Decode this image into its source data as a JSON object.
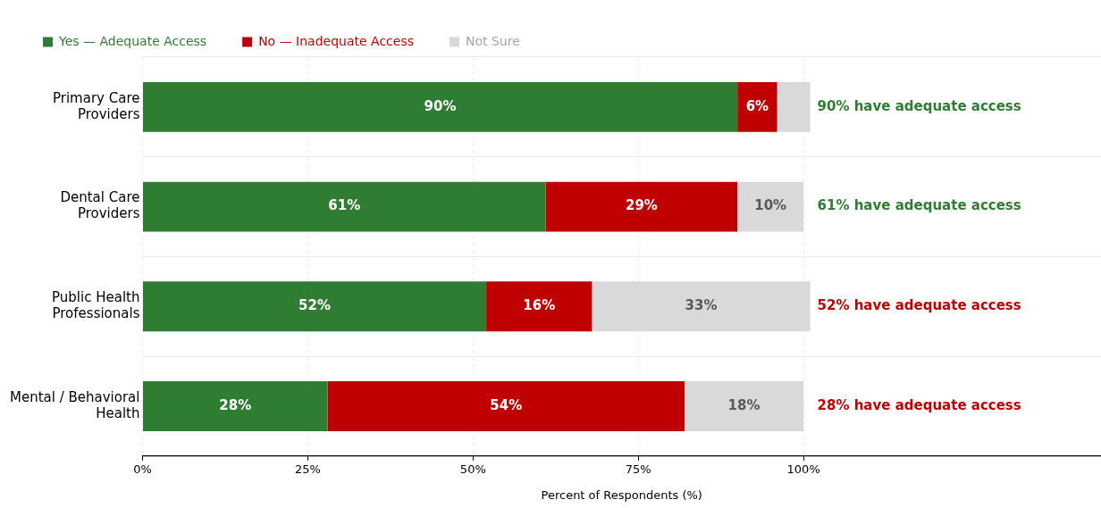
{
  "chart_data": {
    "type": "bar",
    "orientation": "horizontal",
    "stacked": true,
    "categories": [
      "Primary Care\nProviders",
      "Dental Care\nProviders",
      "Public Health\nProfessionals",
      "Mental / Behavioral\nHealth"
    ],
    "series": [
      {
        "name": "Yes — Adequate Access",
        "color": "#2e7d32",
        "values": [
          90,
          61,
          52,
          28
        ],
        "value_labels": [
          "90%",
          "61%",
          "52%",
          "28%"
        ]
      },
      {
        "name": "No — Inadequate Access",
        "color": "#c00000",
        "values": [
          6,
          29,
          16,
          54
        ],
        "value_labels": [
          "6%",
          "29%",
          "16%",
          "54%"
        ]
      },
      {
        "name": "Not Sure",
        "color": "#d9d9d9",
        "values": [
          5,
          10,
          33,
          18
        ],
        "value_labels": [
          null,
          "10%",
          "33%",
          "18%"
        ]
      }
    ],
    "xlabel": "Percent of Respondents (%)",
    "xlim": [
      0,
      145
    ],
    "xticks": [
      {
        "value": 0,
        "label": "0%"
      },
      {
        "value": 25,
        "label": "25%"
      },
      {
        "value": 50,
        "label": "50%"
      },
      {
        "value": 75,
        "label": "75%"
      },
      {
        "value": 100,
        "label": "100%"
      }
    ],
    "annotations": [
      "90% have adequate access",
      "61% have adequate access",
      "52% have adequate access",
      "28% have adequate access"
    ],
    "grid": true,
    "legend": "top left"
  }
}
